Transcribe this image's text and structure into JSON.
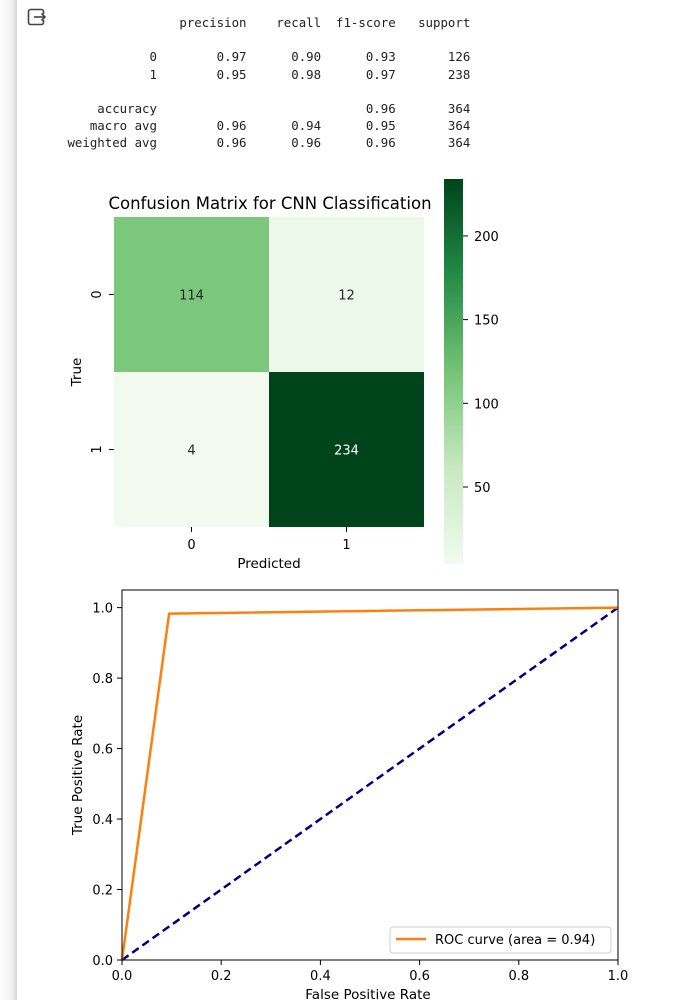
{
  "report": {
    "header": [
      "precision",
      "recall",
      "f1-score",
      "support"
    ],
    "rows": [
      {
        "label": "0",
        "precision": "0.97",
        "recall": "0.90",
        "f1": "0.93",
        "support": "126"
      },
      {
        "label": "1",
        "precision": "0.95",
        "recall": "0.98",
        "f1": "0.97",
        "support": "238"
      }
    ],
    "accuracy": {
      "label": "accuracy",
      "f1": "0.96",
      "support": "364"
    },
    "averages": [
      {
        "label": "macro avg",
        "precision": "0.96",
        "recall": "0.94",
        "f1": "0.95",
        "support": "364"
      },
      {
        "label": "weighted avg",
        "precision": "0.96",
        "recall": "0.96",
        "f1": "0.96",
        "support": "364"
      }
    ]
  },
  "chart_data": [
    {
      "type": "heatmap",
      "title": "Confusion Matrix for CNN Classification",
      "xlabel": "Predicted",
      "ylabel": "True",
      "x_categories": [
        "0",
        "1"
      ],
      "y_categories": [
        "0",
        "1"
      ],
      "values": [
        [
          114,
          12
        ],
        [
          4,
          234
        ]
      ],
      "colormap": "Greens",
      "colorbar": {
        "range": [
          4,
          234
        ],
        "ticks": [
          50,
          100,
          150,
          200
        ]
      },
      "colors": {
        "min": "#f2faf0",
        "low": "#c7e9c0",
        "mid": "#74c476",
        "high": "#238b45",
        "max": "#00441b"
      }
    },
    {
      "type": "line",
      "title": "",
      "xlabel": "False Positive Rate",
      "ylabel": "True Positive Rate",
      "xlim": [
        0.0,
        1.0
      ],
      "ylim": [
        0.0,
        1.05
      ],
      "xticks": [
        "0.0",
        "0.2",
        "0.4",
        "0.6",
        "0.8",
        "1.0"
      ],
      "yticks": [
        "0.0",
        "0.2",
        "0.4",
        "0.6",
        "0.8",
        "1.0"
      ],
      "series": [
        {
          "name": "ROC curve (area = 0.94)",
          "x": [
            0.0,
            0.095,
            1.0
          ],
          "y": [
            0.0,
            0.983,
            1.0
          ],
          "color": "#ff7f0e",
          "style": "solid"
        },
        {
          "x": [
            0.0,
            1.0
          ],
          "y": [
            0.0,
            1.0
          ],
          "color": "#000080",
          "style": "dashed"
        }
      ],
      "legend": "lower-right"
    }
  ]
}
